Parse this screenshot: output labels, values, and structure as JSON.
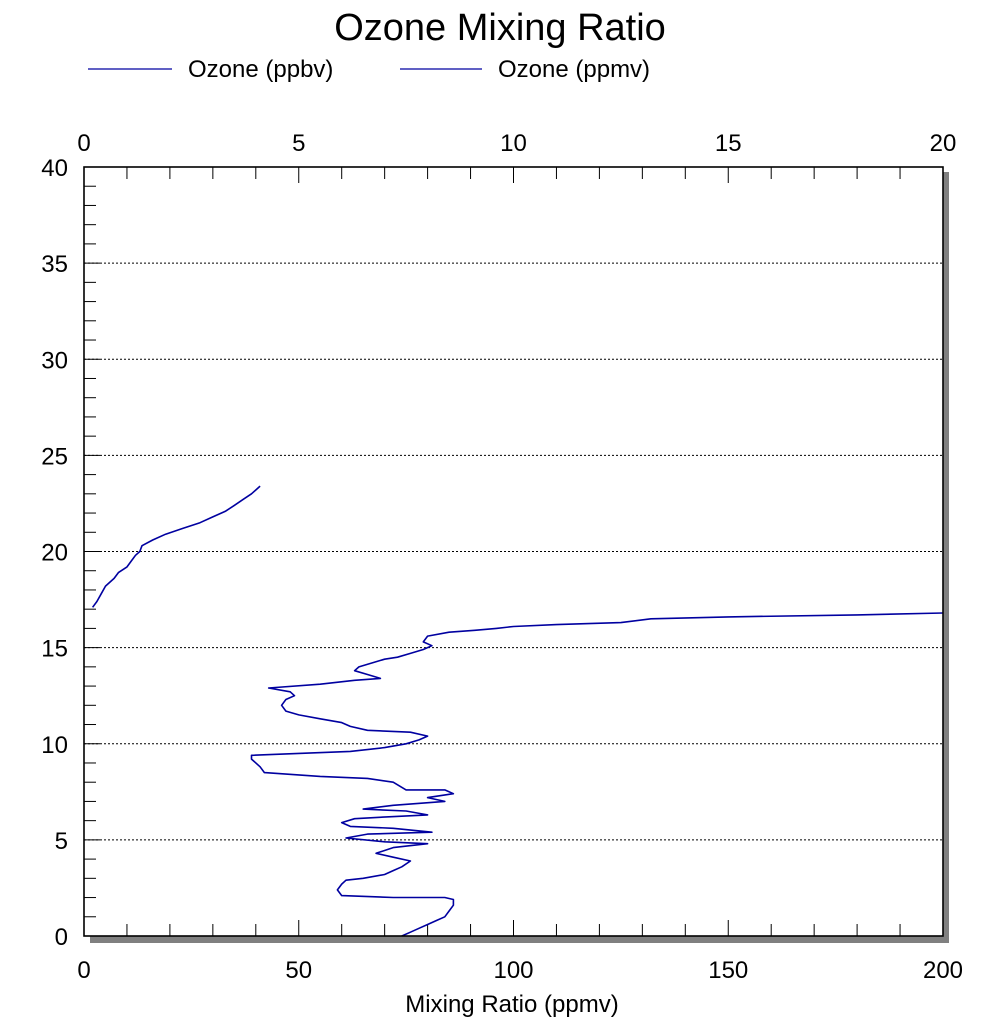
{
  "chart_data": {
    "type": "line",
    "title": "Ozone Mixing Ratio",
    "xlabel": "Mixing Ratio (ppmv)",
    "ylabel": "",
    "x_bottom": {
      "range": [
        0,
        200
      ],
      "ticks": [
        "0",
        "50",
        "100",
        "150",
        "200"
      ]
    },
    "x_top": {
      "range": [
        0,
        20
      ],
      "ticks": [
        "0",
        "5",
        "10",
        "15",
        "20"
      ]
    },
    "y": {
      "range": [
        0,
        40
      ],
      "ticks": [
        "0",
        "5",
        "10",
        "15",
        "20",
        "25",
        "30",
        "35",
        "40"
      ]
    },
    "grid": "horizontal dotted",
    "legend": {
      "placement": "top"
    },
    "series": [
      {
        "name": "Ozone (ppbv)",
        "axis": "bottom",
        "color": "#0000a0",
        "points": [
          [
            74,
            0.0
          ],
          [
            76,
            0.2
          ],
          [
            78,
            0.4
          ],
          [
            80,
            0.6
          ],
          [
            82,
            0.8
          ],
          [
            84,
            1.0
          ],
          [
            85,
            1.3
          ],
          [
            86,
            1.6
          ],
          [
            86,
            1.9
          ],
          [
            84,
            2.0
          ],
          [
            72,
            2.0
          ],
          [
            60,
            2.1
          ],
          [
            59,
            2.4
          ],
          [
            60,
            2.7
          ],
          [
            61,
            2.9
          ],
          [
            65,
            3.0
          ],
          [
            70,
            3.2
          ],
          [
            72,
            3.4
          ],
          [
            74,
            3.6
          ],
          [
            76,
            3.9
          ],
          [
            72,
            4.1
          ],
          [
            68,
            4.3
          ],
          [
            72,
            4.6
          ],
          [
            80,
            4.8
          ],
          [
            70,
            4.9
          ],
          [
            61,
            5.1
          ],
          [
            66,
            5.3
          ],
          [
            81,
            5.4
          ],
          [
            72,
            5.6
          ],
          [
            62,
            5.7
          ],
          [
            60,
            5.9
          ],
          [
            63,
            6.1
          ],
          [
            71,
            6.2
          ],
          [
            80,
            6.3
          ],
          [
            75,
            6.5
          ],
          [
            65,
            6.6
          ],
          [
            72,
            6.8
          ],
          [
            84,
            7.0
          ],
          [
            80,
            7.2
          ],
          [
            86,
            7.4
          ],
          [
            84,
            7.6
          ],
          [
            75,
            7.6
          ],
          [
            72,
            8.0
          ],
          [
            66,
            8.2
          ],
          [
            55,
            8.3
          ],
          [
            42,
            8.5
          ],
          [
            41,
            8.8
          ],
          [
            39,
            9.2
          ],
          [
            39,
            9.4
          ],
          [
            50,
            9.5
          ],
          [
            62,
            9.6
          ],
          [
            70,
            9.8
          ],
          [
            75,
            10.0
          ],
          [
            78,
            10.2
          ],
          [
            80,
            10.4
          ],
          [
            76,
            10.6
          ],
          [
            66,
            10.7
          ],
          [
            62,
            10.9
          ],
          [
            60,
            11.1
          ],
          [
            55,
            11.3
          ],
          [
            50,
            11.5
          ],
          [
            47,
            11.7
          ],
          [
            46,
            12.0
          ],
          [
            47,
            12.3
          ],
          [
            49,
            12.5
          ],
          [
            48,
            12.7
          ],
          [
            43,
            12.9
          ],
          [
            55,
            13.1
          ],
          [
            63,
            13.3
          ],
          [
            69,
            13.4
          ],
          [
            66,
            13.6
          ],
          [
            63,
            13.8
          ],
          [
            64,
            14.0
          ],
          [
            67,
            14.2
          ],
          [
            70,
            14.4
          ],
          [
            73,
            14.5
          ],
          [
            76,
            14.7
          ],
          [
            79,
            14.9
          ],
          [
            81,
            15.1
          ],
          [
            79,
            15.3
          ],
          [
            80,
            15.6
          ],
          [
            85,
            15.8
          ],
          [
            91,
            15.9
          ],
          [
            96,
            16.0
          ],
          [
            100,
            16.1
          ],
          [
            110,
            16.2
          ],
          [
            125,
            16.3
          ],
          [
            132,
            16.5
          ],
          [
            150,
            16.6
          ],
          [
            180,
            16.7
          ],
          [
            200,
            16.8
          ]
        ]
      },
      {
        "name": "Ozone (ppmv)",
        "axis": "top",
        "color": "#0000a0",
        "points": [
          [
            0.2,
            17.1
          ],
          [
            0.3,
            17.4
          ],
          [
            0.4,
            17.8
          ],
          [
            0.5,
            18.2
          ],
          [
            0.7,
            18.6
          ],
          [
            0.8,
            18.9
          ],
          [
            1.0,
            19.2
          ],
          [
            1.1,
            19.5
          ],
          [
            1.2,
            19.8
          ],
          [
            1.3,
            20.0
          ],
          [
            1.35,
            20.3
          ],
          [
            1.6,
            20.6
          ],
          [
            1.9,
            20.9
          ],
          [
            2.3,
            21.2
          ],
          [
            2.7,
            21.5
          ],
          [
            3.0,
            21.8
          ],
          [
            3.3,
            22.1
          ],
          [
            3.5,
            22.4
          ],
          [
            3.7,
            22.7
          ],
          [
            3.9,
            23.0
          ],
          [
            4.0,
            23.2
          ],
          [
            4.1,
            23.4
          ]
        ]
      }
    ]
  }
}
